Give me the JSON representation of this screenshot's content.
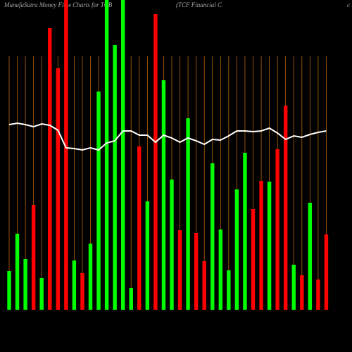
{
  "chart_data": {
    "type": "bar",
    "title": "MunafaSutra  Money Flow  Charts for TCB",
    "subtitle": "(TCF Financial C",
    "corner_text": "c",
    "values": [
      55,
      108,
      72,
      149,
      45,
      400,
      343,
      440,
      70,
      52,
      94,
      310,
      440,
      376,
      440,
      31,
      232,
      154,
      420,
      326,
      185,
      113,
      272,
      109,
      69,
      208,
      114,
      56,
      171,
      223,
      143,
      183,
      182,
      228,
      290,
      64,
      49,
      152,
      43,
      107
    ],
    "colors": [
      "#00ff00",
      "#00ff00",
      "#00ff00",
      "#ff0000",
      "#00ff00",
      "#ff0000",
      "#ff0000",
      "#ff0000",
      "#00ff00",
      "#ff0000",
      "#00ff00",
      "#00ff00",
      "#00ff00",
      "#00ff00",
      "#00ff00",
      "#00ff00",
      "#ff0000",
      "#00ff00",
      "#ff0000",
      "#00ff00",
      "#00ff00",
      "#ff0000",
      "#00ff00",
      "#ff0000",
      "#ff0000",
      "#00ff00",
      "#00ff00",
      "#00ff00",
      "#00ff00",
      "#00ff00",
      "#ff0000",
      "#ff0000",
      "#00ff00",
      "#ff0000",
      "#ff0000",
      "#00ff00",
      "#ff0000",
      "#00ff00",
      "#ff0000",
      "#ff0000"
    ],
    "line": [
      263,
      265,
      263,
      260,
      264,
      262,
      255,
      230,
      229,
      227,
      230,
      227,
      237,
      240,
      254,
      254,
      248,
      248,
      238,
      248,
      244,
      238,
      244,
      240,
      235,
      242,
      241,
      247,
      254,
      254,
      253,
      254,
      258,
      251,
      242,
      247,
      245,
      249,
      252,
      254
    ],
    "line_color": "#ffffff",
    "grid_color": "#b8650a",
    "ylim": [
      0,
      440
    ]
  }
}
